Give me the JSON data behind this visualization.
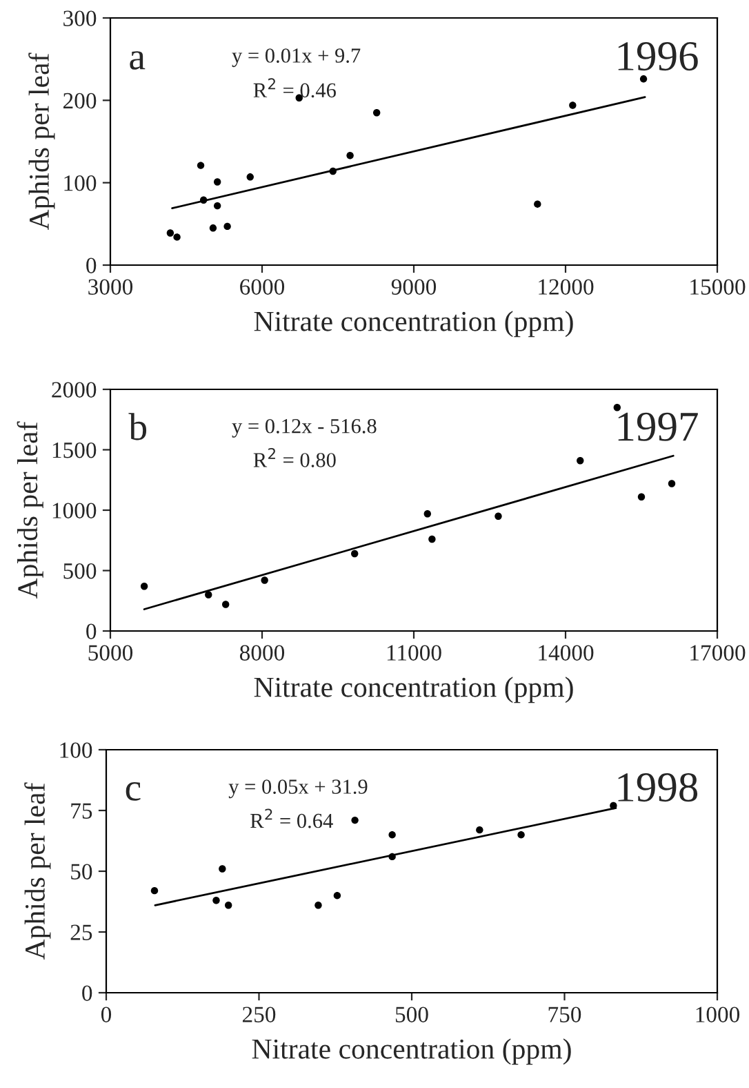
{
  "chart_data": [
    {
      "type": "scatter",
      "xlabel": "Nitrate concentration (ppm)",
      "ylabel": "Aphids per leaf",
      "annotations": [
        "a",
        "y = 0.01x + 9.7",
        "R$^{2}$ = 0.46",
        "1996"
      ],
      "xlim": [
        3000,
        15000
      ],
      "xticks": [
        3000,
        6000,
        9000,
        12000,
        15000
      ],
      "ylim": [
        0,
        300
      ],
      "yticks": [
        0,
        100,
        200,
        300
      ],
      "grid": false,
      "series": [
        {
          "color": "#000000",
          "marker": "circle",
          "x": [
            4185,
            4317,
            4787,
            4843,
            5031,
            5116,
            5116,
            5313,
            5765,
            6733,
            7401,
            7740,
            8266,
            11445,
            12141,
            13542
          ],
          "values": [
            39,
            34,
            121,
            79,
            45,
            101,
            72,
            47,
            107,
            203,
            114,
            133,
            185,
            74,
            194,
            226
          ]
        },
        {
          "type": "line",
          "color": "#000000",
          "marker": "none",
          "x": [
            4222,
            13570
          ],
          "values": [
            69,
            204
          ]
        }
      ]
    },
    {
      "type": "scatter",
      "xlabel": "Nitrate concentration (ppm)",
      "ylabel": "Aphids per leaf",
      "annotations": [
        "b",
        "y = 0.12x - 516.8",
        "R$^{2}$ = 0.80",
        "1997"
      ],
      "xlim": [
        5000,
        17000
      ],
      "xticks": [
        5000,
        8000,
        11000,
        14000,
        17000
      ],
      "ylim": [
        0,
        2000
      ],
      "yticks": [
        0,
        500,
        1000,
        1500,
        2000
      ],
      "grid": false,
      "series": [
        {
          "color": "#000000",
          "marker": "circle",
          "x": [
            5670,
            6940,
            7280,
            8050,
            9830,
            11270,
            11360,
            12670,
            14290,
            15020,
            15500,
            16100
          ],
          "values": [
            370,
            300,
            220,
            420,
            640,
            970,
            760,
            950,
            1410,
            1850,
            1110,
            1220
          ]
        },
        {
          "type": "line",
          "color": "#000000",
          "marker": "none",
          "x": [
            5670,
            16130
          ],
          "values": [
            180,
            1450
          ]
        }
      ]
    },
    {
      "type": "scatter",
      "xlabel": "Nitrate concentration (ppm)",
      "ylabel": "Aphids per leaf",
      "annotations": [
        "c",
        "y = 0.05x + 31.9",
        "R$^{2}$ = 0.64",
        "1998"
      ],
      "xlim": [
        0,
        1000
      ],
      "xticks": [
        0,
        250,
        500,
        750,
        1000
      ],
      "ylim": [
        0,
        100
      ],
      "yticks": [
        0,
        25,
        50,
        75,
        100
      ],
      "grid": false,
      "series": [
        {
          "color": "#000000",
          "marker": "circle",
          "x": [
            79,
            180,
            190,
            200,
            347,
            378,
            407,
            468,
            468,
            611,
            679,
            830
          ],
          "values": [
            42,
            38,
            51,
            36,
            36,
            40,
            71,
            65,
            56,
            67,
            65,
            77
          ]
        },
        {
          "type": "line",
          "color": "#000000",
          "marker": "none",
          "x": [
            80,
            834
          ],
          "values": [
            36,
            76
          ]
        }
      ]
    }
  ]
}
